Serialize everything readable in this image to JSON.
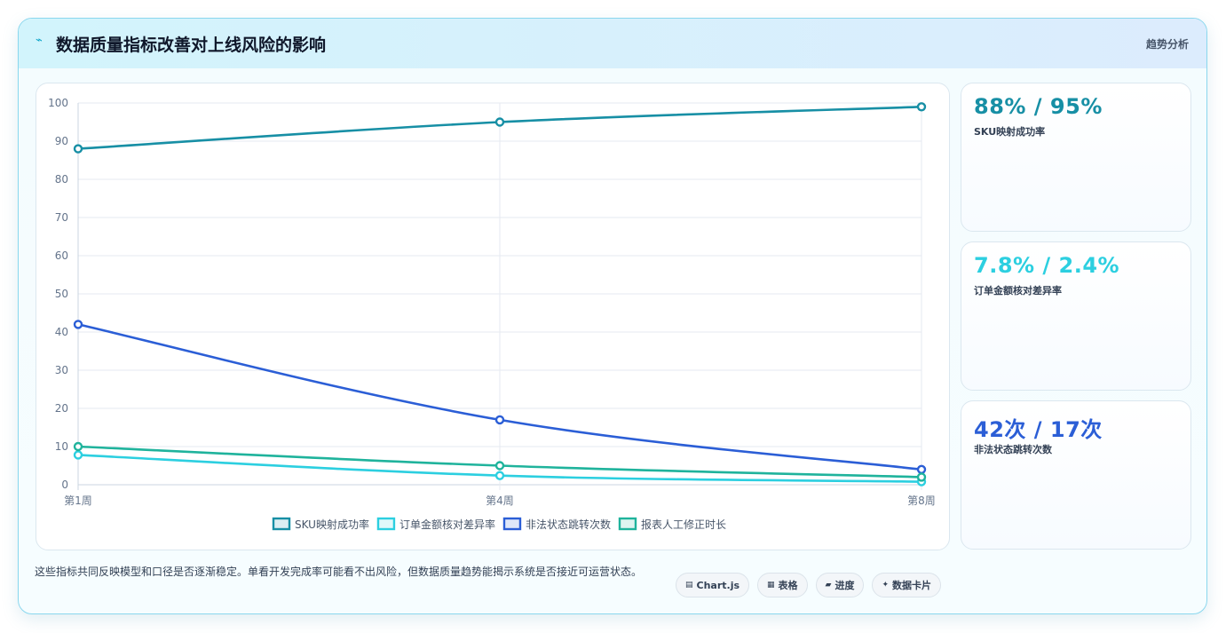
{
  "header": {
    "icon": "chart-line-icon",
    "title": "数据质量指标改善对上线风险的影响",
    "tag": "趋势分析"
  },
  "stats": [
    {
      "value": "88% / 95%",
      "label": "SKU映射成功率",
      "color": "#178fa5"
    },
    {
      "value": "7.8% / 2.4%",
      "label": "订单金额核对差异率",
      "color": "#2ccfe0"
    },
    {
      "value": "42次 / 17次",
      "label": "非法状态跳转次数",
      "color": "#2b5ed6"
    }
  ],
  "footnote": "这些指标共同反映模型和口径是否逐渐稳定。单看开发完成率可能看不出风险，但数据质量趋势能揭示系统是否接近可运营状态。",
  "chips": [
    {
      "icon": "chart-icon",
      "glyph": "▤",
      "label": "Chart.js"
    },
    {
      "icon": "table-icon",
      "glyph": "▦",
      "label": "表格"
    },
    {
      "icon": "progress-icon",
      "glyph": "▰",
      "label": "进度"
    },
    {
      "icon": "data-card-icon",
      "glyph": "✦",
      "label": "数据卡片"
    }
  ],
  "chart_data": {
    "type": "line",
    "categories": [
      "第1周",
      "第4周",
      "第8周"
    ],
    "ylim": [
      0,
      100
    ],
    "yticks": [
      0,
      10,
      20,
      30,
      40,
      50,
      60,
      70,
      80,
      90,
      100
    ],
    "grid": true,
    "legend_position": "bottom",
    "series": [
      {
        "name": "SKU映射成功率",
        "values": [
          88,
          95,
          99
        ],
        "color": "#178fa5"
      },
      {
        "name": "订单金额核对差异率",
        "values": [
          7.8,
          2.4,
          0.8
        ],
        "color": "#2ccfe0"
      },
      {
        "name": "非法状态跳转次数",
        "values": [
          42,
          17,
          4
        ],
        "color": "#2b5ed6"
      },
      {
        "name": "报表人工修正时长",
        "values": [
          10,
          5,
          2
        ],
        "color": "#1fb39c"
      }
    ]
  }
}
